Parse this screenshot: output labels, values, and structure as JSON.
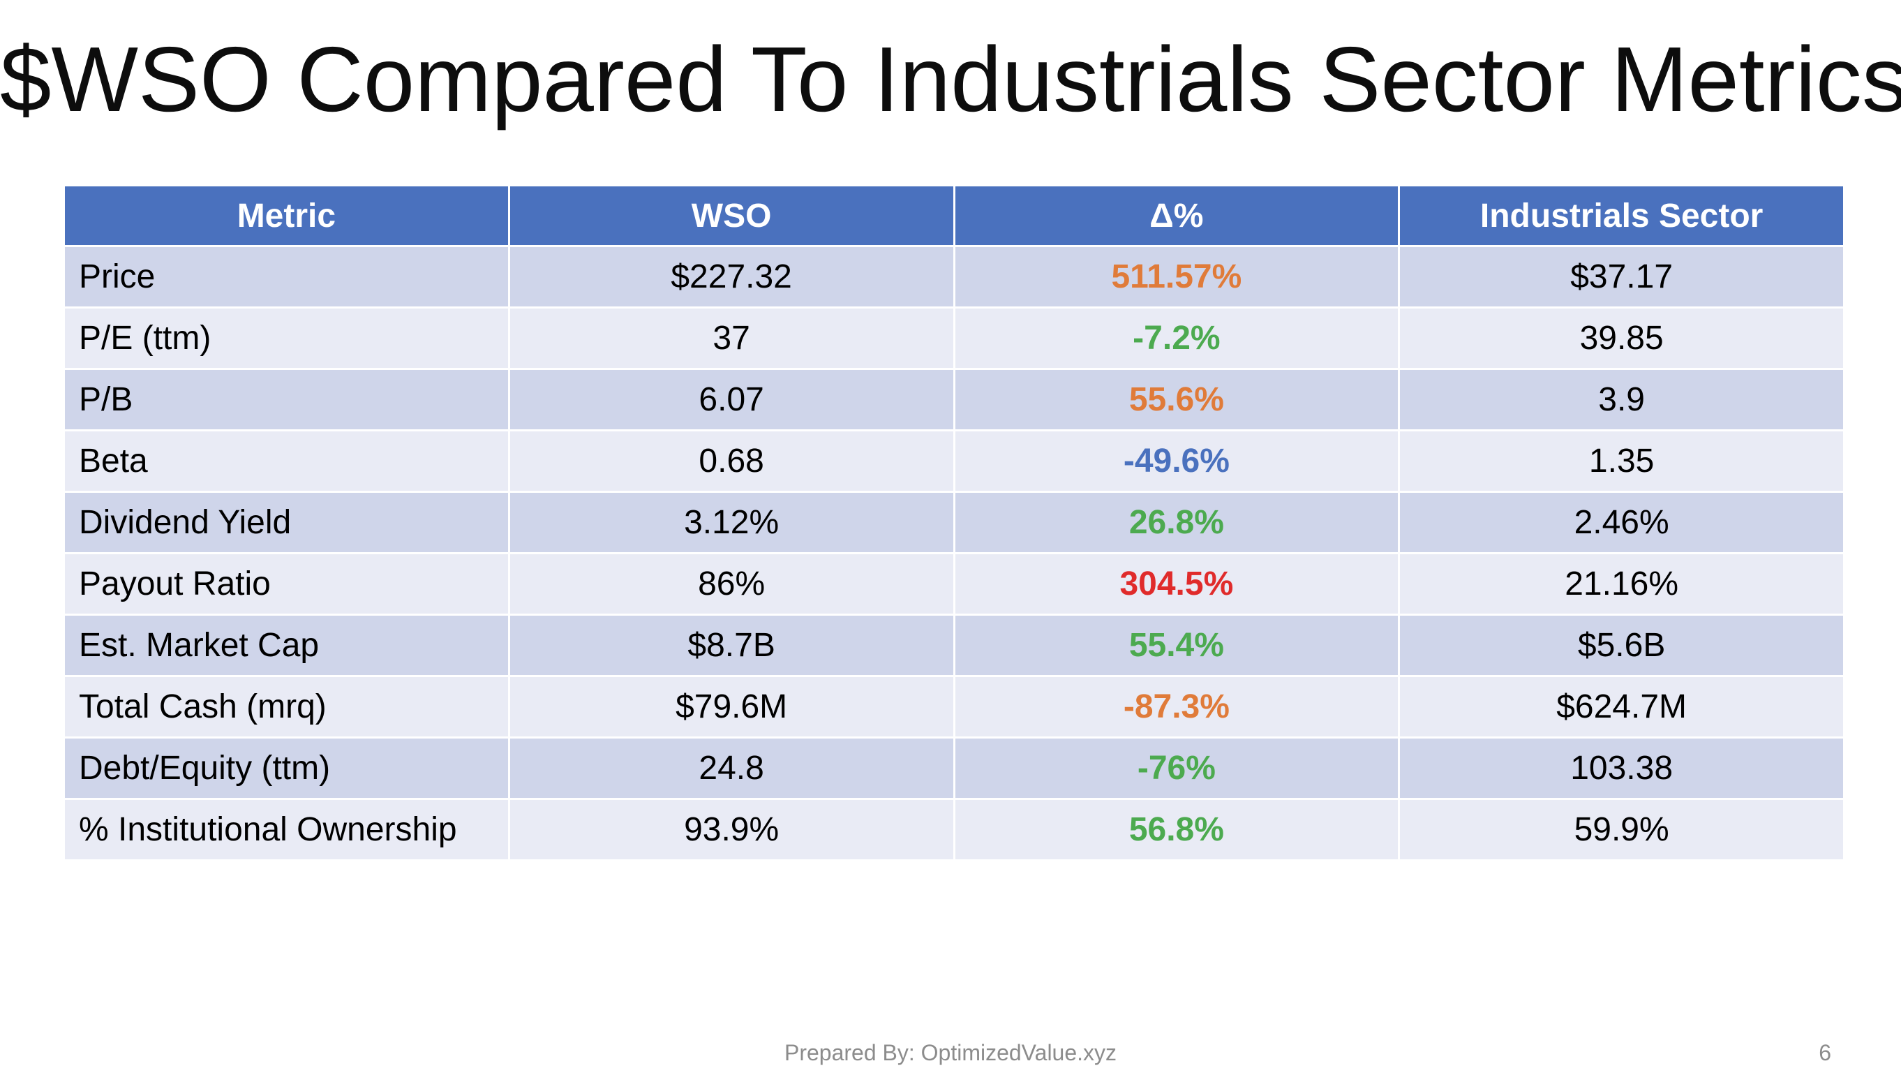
{
  "title": "$WSO Compared To Industrials Sector Metrics",
  "table": {
    "headers": [
      "Metric",
      "WSO",
      "Δ%",
      "Industrials Sector"
    ],
    "rows": [
      {
        "metric": "Price",
        "wso": "$227.32",
        "delta": "511.57%",
        "delta_color": "#e07b39",
        "sector": "$37.17"
      },
      {
        "metric": "P/E (ttm)",
        "wso": "37",
        "delta": "-7.2%",
        "delta_color": "#4caa4f",
        "sector": "39.85"
      },
      {
        "metric": "P/B",
        "wso": "6.07",
        "delta": "55.6%",
        "delta_color": "#e07b39",
        "sector": "3.9"
      },
      {
        "metric": "Beta",
        "wso": "0.68",
        "delta": "-49.6%",
        "delta_color": "#4a71be",
        "sector": "1.35"
      },
      {
        "metric": "Dividend Yield",
        "wso": "3.12%",
        "delta": "26.8%",
        "delta_color": "#4caa4f",
        "sector": "2.46%"
      },
      {
        "metric": "Payout Ratio",
        "wso": "86%",
        "delta": "304.5%",
        "delta_color": "#e02b2b",
        "sector": "21.16%"
      },
      {
        "metric": "Est. Market Cap",
        "wso": "$8.7B",
        "delta": "55.4%",
        "delta_color": "#4caa4f",
        "sector": "$5.6B"
      },
      {
        "metric": "Total Cash (mrq)",
        "wso": "$79.6M",
        "delta": "-87.3%",
        "delta_color": "#e07b39",
        "sector": "$624.7M"
      },
      {
        "metric": "Debt/Equity (ttm)",
        "wso": "24.8",
        "delta": "-76%",
        "delta_color": "#4caa4f",
        "sector": "103.38"
      },
      {
        "metric": "% Institutional Ownership",
        "wso": "93.9%",
        "delta": "56.8%",
        "delta_color": "#4caa4f",
        "sector": "59.9%"
      }
    ]
  },
  "colors": {
    "header_bg": "#4a71be",
    "row_dark": "#cfd5ea",
    "row_light": "#e9ebf5"
  },
  "footer": {
    "prepared_by": "Prepared By: OptimizedValue.xyz",
    "page_number": "6"
  }
}
